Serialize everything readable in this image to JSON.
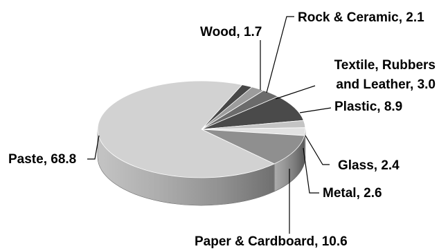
{
  "chart_data": {
    "type": "pie",
    "style": "3d",
    "title": "",
    "slices": [
      {
        "label": "Wood",
        "value": 1.7,
        "color": "#474747"
      },
      {
        "label": "Rock & Ceramic",
        "value": 2.1,
        "color": "#9c9c9c"
      },
      {
        "label": "Textile, Rubbers and Leather",
        "value": 3.0,
        "color": "#6b6b6b"
      },
      {
        "label": "Plastic",
        "value": 8.9,
        "color": "#4a4a4a"
      },
      {
        "label": "Glass",
        "value": 2.4,
        "color": "#c4c4c4"
      },
      {
        "label": "Metal",
        "value": 2.6,
        "color": "#e2e2e2"
      },
      {
        "label": "Paper & Cardboard",
        "value": 10.6,
        "color": "#8f8f8f"
      },
      {
        "label": "Paste",
        "value": 68.8,
        "color": "#d2d2d2"
      }
    ],
    "data_labels": [
      {
        "lines": [
          "Wood, 1.7"
        ]
      },
      {
        "lines": [
          "Rock & Ceramic, 2.1"
        ]
      },
      {
        "lines": [
          "Textile, Rubbers",
          "and Leather, 3.0"
        ]
      },
      {
        "lines": [
          "Plastic, 8.9"
        ]
      },
      {
        "lines": [
          "Glass, 2.4"
        ]
      },
      {
        "lines": [
          "Metal, 2.6"
        ]
      },
      {
        "lines": [
          "Paper & Cardboard, 10.6"
        ]
      },
      {
        "lines": [
          "Paste, 68.8"
        ]
      }
    ],
    "legend": "none"
  }
}
